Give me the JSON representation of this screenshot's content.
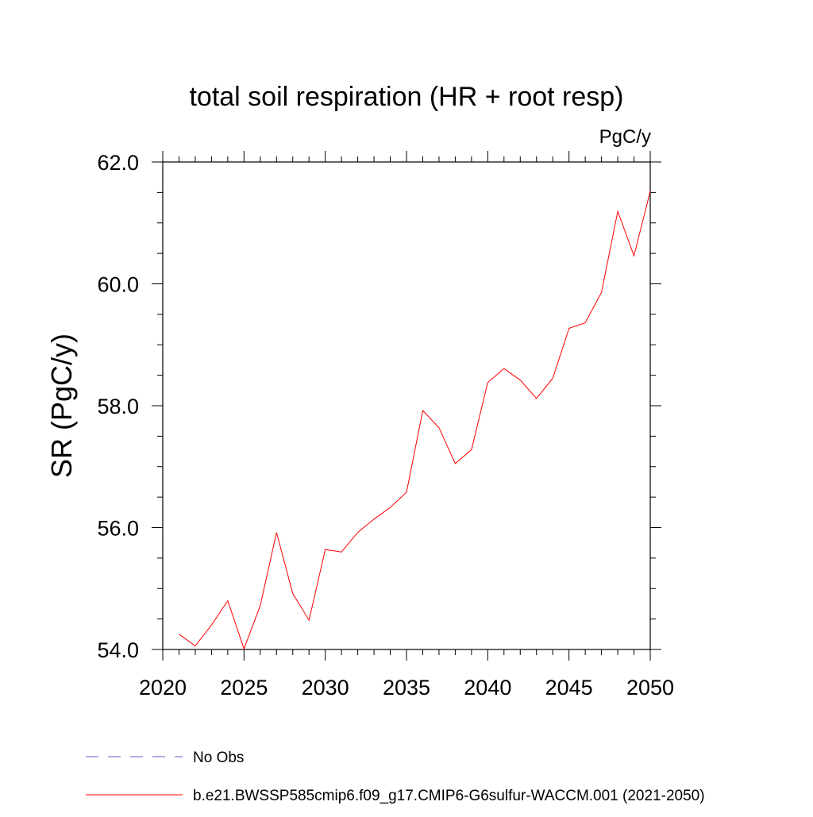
{
  "chart_data": {
    "type": "line",
    "title": "total soil respiration (HR + root resp)",
    "units": "PgC/y",
    "ylabel": "SR  (PgC/y)",
    "xlabel": "",
    "xlim": [
      2020,
      2050
    ],
    "ylim": [
      54.0,
      62.0
    ],
    "x_ticks": [
      "2020",
      "2025",
      "2030",
      "2035",
      "2040",
      "2045",
      "2050"
    ],
    "y_ticks": [
      "54.0",
      "56.0",
      "58.0",
      "60.0",
      "62.0"
    ],
    "grid": false,
    "series": [
      {
        "name": "b.e21.BWSSP585cmip6.f09_g17.CMIP6-G6sulfur-WACCM.001 (2021-2050)",
        "color": "#ff0000",
        "x": [
          2021,
          2022,
          2023,
          2024,
          2025,
          2026,
          2027,
          2028,
          2029,
          2030,
          2031,
          2032,
          2033,
          2034,
          2035,
          2036,
          2037,
          2038,
          2039,
          2040,
          2041,
          2042,
          2043,
          2044,
          2045,
          2046,
          2047,
          2048,
          2049,
          2050
        ],
        "values": [
          54.25,
          54.06,
          54.4,
          54.8,
          54.01,
          54.72,
          55.92,
          54.92,
          54.48,
          55.64,
          55.6,
          55.92,
          56.14,
          56.33,
          56.58,
          57.92,
          57.64,
          57.05,
          57.28,
          58.38,
          58.61,
          58.42,
          58.12,
          58.45,
          59.27,
          59.36,
          59.86,
          61.19,
          60.46,
          61.52
        ]
      }
    ],
    "legend": {
      "placement": "bottom",
      "entries": [
        {
          "label": "No Obs",
          "style": "dashed",
          "color": "#6a5acd"
        },
        {
          "label": "b.e21.BWSSP585cmip6.f09_g17.CMIP6-G6sulfur-WACCM.001 (2021-2050)",
          "style": "solid",
          "color": "#ff0000"
        }
      ]
    }
  }
}
